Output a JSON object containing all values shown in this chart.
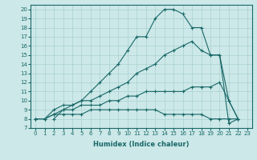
{
  "xlabel": "Humidex (Indice chaleur)",
  "ylabel": "",
  "background_color": "#cce8e8",
  "line_color": "#1a6868",
  "grid_color": "#aad0d0",
  "xlim": [
    -0.5,
    23.5
  ],
  "ylim": [
    7,
    20.5
  ],
  "xticks": [
    0,
    1,
    2,
    3,
    4,
    5,
    6,
    7,
    8,
    9,
    10,
    11,
    12,
    13,
    14,
    15,
    16,
    17,
    18,
    19,
    20,
    21,
    22,
    23
  ],
  "yticks": [
    7,
    8,
    9,
    10,
    11,
    12,
    13,
    14,
    15,
    16,
    17,
    18,
    19,
    20
  ],
  "lines": [
    {
      "x": [
        0,
        1,
        2,
        3,
        4,
        5,
        6,
        7,
        8,
        9,
        10,
        11,
        12,
        13,
        14,
        15,
        16,
        17,
        18,
        19,
        20,
        21,
        22
      ],
      "y": [
        8,
        8,
        8.5,
        8.5,
        8.5,
        8.5,
        9,
        9,
        9,
        9,
        9,
        9,
        9,
        9,
        8.5,
        8.5,
        8.5,
        8.5,
        8.5,
        8,
        8,
        8,
        8
      ]
    },
    {
      "x": [
        0,
        1,
        2,
        3,
        4,
        5,
        6,
        7,
        8,
        9,
        10,
        11,
        12,
        13,
        14,
        15,
        16,
        17,
        18,
        19,
        20,
        21,
        22
      ],
      "y": [
        8,
        8,
        8.5,
        9,
        9,
        9.5,
        9.5,
        9.5,
        10,
        10,
        10.5,
        10.5,
        11,
        11,
        11,
        11,
        11,
        11.5,
        11.5,
        11.5,
        12,
        10,
        8
      ]
    },
    {
      "x": [
        0,
        1,
        2,
        3,
        4,
        5,
        6,
        7,
        8,
        9,
        10,
        11,
        12,
        13,
        14,
        15,
        16,
        17,
        18,
        19,
        20,
        21,
        22
      ],
      "y": [
        8,
        8,
        9,
        9.5,
        9.5,
        10,
        10,
        10.5,
        11,
        11.5,
        12,
        13,
        13.5,
        14,
        15,
        15.5,
        16,
        16.5,
        15.5,
        15,
        15,
        10,
        8
      ]
    },
    {
      "x": [
        2,
        3,
        4,
        5,
        6,
        7,
        8,
        9,
        10,
        11,
        12,
        13,
        14,
        15,
        16,
        17,
        18,
        19,
        20,
        21,
        22
      ],
      "y": [
        8,
        9,
        9.5,
        10,
        11,
        12,
        13,
        14,
        15.5,
        17,
        17,
        19,
        20,
        20,
        19.5,
        18,
        18,
        15,
        15,
        7.5,
        8
      ]
    }
  ]
}
